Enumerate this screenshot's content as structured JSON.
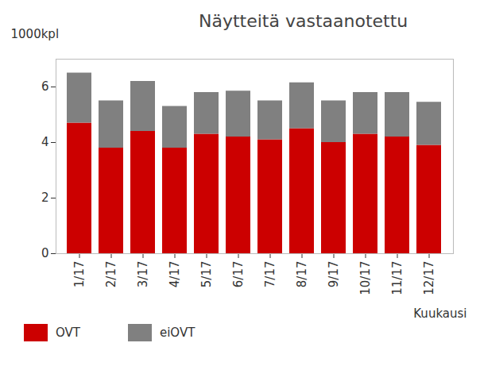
{
  "chart_data": {
    "type": "bar",
    "title": "Näytteitä vastaanotettu",
    "x_label": "Kuukausi",
    "y_label": "1000kpl",
    "categories": [
      "1/17",
      "2/17",
      "3/17",
      "4/17",
      "5/17",
      "6/17",
      "7/17",
      "8/17",
      "9/17",
      "10/17",
      "11/17",
      "12/17"
    ],
    "series": [
      {
        "name": "OVT",
        "color": "#cc0000",
        "values": [
          4.7,
          3.8,
          4.4,
          3.8,
          4.3,
          4.2,
          4.1,
          4.5,
          4.0,
          4.3,
          4.2,
          3.9
        ]
      },
      {
        "name": "eiOVT",
        "color": "#808080",
        "values": [
          1.8,
          1.7,
          1.8,
          1.5,
          1.5,
          1.65,
          1.4,
          1.65,
          1.5,
          1.5,
          1.6,
          1.55
        ]
      }
    ],
    "stacked": true,
    "ylim": [
      0,
      7
    ],
    "yticks": [
      0,
      2,
      4,
      6
    ],
    "grid": false,
    "legend": "bottom"
  }
}
